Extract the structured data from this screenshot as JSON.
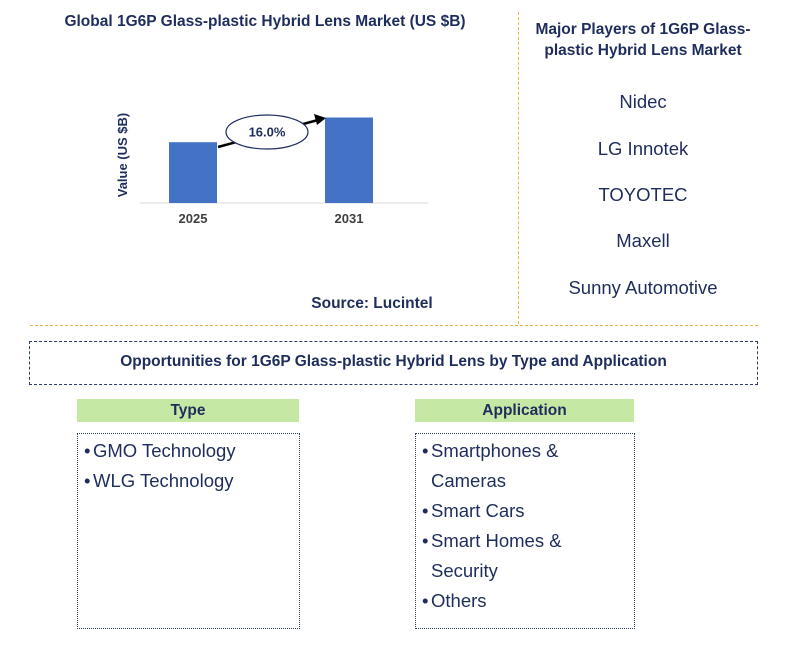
{
  "chart_data": {
    "type": "bar",
    "title": "Global 1G6P Glass-plastic Hybrid Lens Market (US $B)",
    "categories": [
      "2025",
      "2031"
    ],
    "values": [
      0.64,
      0.9
    ],
    "ylabel": "Value (US $B)",
    "ylim": [
      0,
      1
    ],
    "annotation": "16.0%",
    "bar_color": "#4472c4",
    "source": "Source: Lucintel"
  },
  "players": {
    "title": "Major Players of 1G6P Glass-plastic Hybrid Lens Market",
    "items": [
      "Nidec",
      "LG Innotek",
      "TOYOTEC",
      "Maxell",
      "Sunny Automotive"
    ]
  },
  "opportunities": {
    "title": "Opportunities for 1G6P Glass-plastic Hybrid Lens by Type and Application",
    "type_header": "Type",
    "type_items": [
      "GMO Technology",
      "WLG Technology"
    ],
    "application_header": "Application",
    "application_items": [
      "Smartphones & Cameras",
      "Smart Cars",
      "Smart Homes & Security",
      "Others"
    ],
    "bullet": "•"
  },
  "colors": {
    "text": "#1f2d5c",
    "divider": "#e8b94a",
    "header_bg": "#c5e8a4"
  }
}
